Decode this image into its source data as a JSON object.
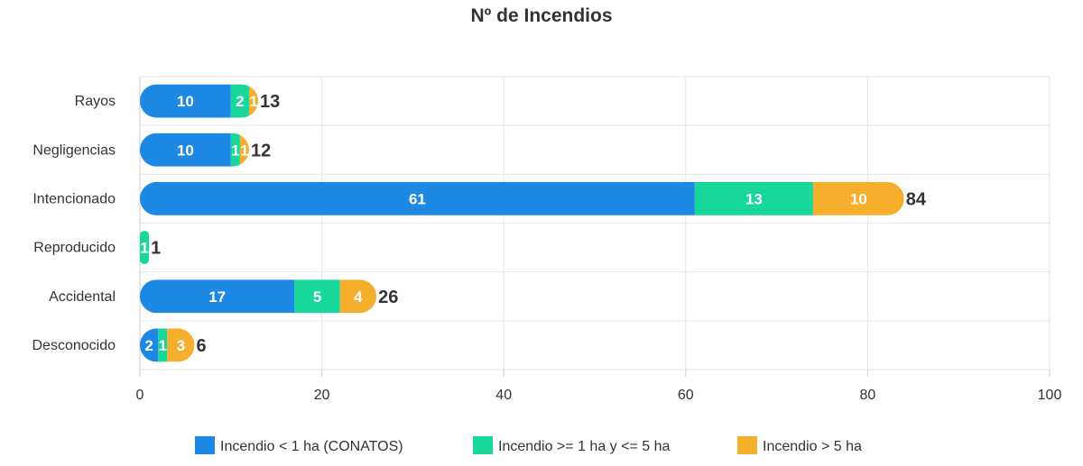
{
  "chart_data": {
    "type": "bar",
    "orientation": "horizontal",
    "stacked": true,
    "title": "Nº de Incendios",
    "categories": [
      "Rayos",
      "Negligencias",
      "Intencionado",
      "Reproducido",
      "Accidental",
      "Desconocido"
    ],
    "series": [
      {
        "name": "Incendio < 1 ha (CONATOS)",
        "color": "#1e88e5",
        "values": [
          10,
          10,
          61,
          0,
          17,
          2
        ]
      },
      {
        "name": "Incendio >= 1 ha y <= 5 ha",
        "color": "#17d79b",
        "values": [
          2,
          1,
          13,
          1,
          5,
          1
        ]
      },
      {
        "name": "Incendio > 5 ha",
        "color": "#f6ae2d",
        "values": [
          1,
          1,
          10,
          0,
          4,
          3
        ]
      }
    ],
    "totals": [
      13,
      12,
      84,
      1,
      26,
      6
    ],
    "xlim": [
      0,
      100
    ],
    "xticks": [
      0,
      20,
      40,
      60,
      80,
      100
    ],
    "grid": true,
    "legend_position": "bottom"
  }
}
